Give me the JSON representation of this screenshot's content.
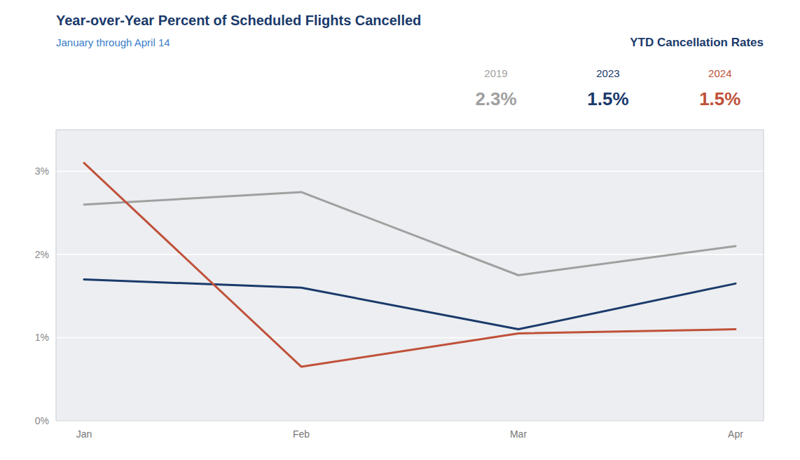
{
  "chart_data": {
    "type": "line",
    "title": "Year-over-Year Percent of Scheduled Flights Cancelled",
    "subtitle": "January through April 14",
    "annotations": [
      "YTD Cancellation Rates",
      "2.3%",
      "1.5%",
      "1.5%"
    ],
    "categories": [
      "Jan",
      "Feb",
      "Mar",
      "Apr"
    ],
    "series": [
      {
        "name": "2019",
        "color": "#a0a0a0",
        "values": [
          2.6,
          2.75,
          1.75,
          2.1
        ]
      },
      {
        "name": "2023",
        "color": "#1a3a6b",
        "values": [
          1.7,
          1.6,
          1.1,
          1.65
        ]
      },
      {
        "name": "2024",
        "color": "#c0513a",
        "values": [
          3.1,
          0.65,
          1.05,
          1.1
        ]
      }
    ],
    "ylim": [
      0,
      3.5
    ],
    "yticks": [
      {
        "value": 0,
        "label": "0%"
      },
      {
        "value": 1,
        "label": "1%"
      },
      {
        "value": 2,
        "label": "2%"
      },
      {
        "value": 3,
        "label": "3%"
      }
    ],
    "grid": true
  }
}
